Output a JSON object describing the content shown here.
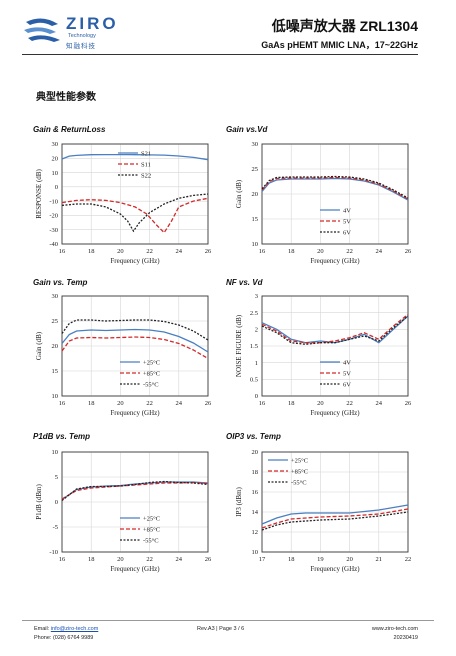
{
  "header": {
    "logo_name": "ZIRO",
    "logo_sub": "Technology",
    "logo_cn": "知融科技",
    "title": "低噪声放大器 ZRL1304",
    "subtitle": "GaAs pHEMT MMIC LNA，17~22GHz"
  },
  "section_title": "典型性能参数",
  "footer": {
    "email_label": "Email:",
    "email": "info@ziro-tech.com",
    "phone_label": "Phone:",
    "phone": "(028) 6764 9989",
    "rev": "Rev.A3 | Page 3 / 6",
    "website": "www.ziro-tech.com",
    "date": "20230419"
  },
  "chart_data": [
    {
      "type": "line",
      "title": "Gain & ReturnLoss",
      "xlabel": "Frequency (GHz)",
      "ylabel": "RESPONSE (dB)",
      "xlim": [
        16,
        26
      ],
      "ylim": [
        -40,
        30
      ],
      "xticks": [
        16,
        18,
        20,
        22,
        24,
        26
      ],
      "yticks": [
        -40,
        -30,
        -20,
        -10,
        0,
        10,
        20,
        30
      ],
      "grid": true,
      "legend": "upper-center",
      "series": [
        {
          "name": "S21",
          "color": "#4a7fc1",
          "dash": "",
          "x": [
            16,
            16.5,
            17,
            18,
            19,
            20,
            21,
            22,
            23,
            24,
            25,
            26
          ],
          "y": [
            19.5,
            21.5,
            22,
            22.5,
            22.6,
            22.6,
            22.5,
            22.4,
            22.2,
            21.6,
            20.6,
            19
          ]
        },
        {
          "name": "S11",
          "color": "#d12a2a",
          "dash": "4,2",
          "x": [
            16,
            17,
            18,
            19,
            20,
            21,
            21.8,
            22.5,
            23,
            23.5,
            24,
            25,
            26
          ],
          "y": [
            -11,
            -9.5,
            -9,
            -9.5,
            -11,
            -14,
            -19,
            -27,
            -32,
            -24,
            -14,
            -10,
            -8
          ]
        },
        {
          "name": "S22",
          "color": "#222222",
          "dash": "2,1.5",
          "x": [
            16,
            17,
            18,
            19,
            20,
            20.5,
            20.9,
            21.3,
            22,
            23,
            24,
            25,
            26
          ],
          "y": [
            -13,
            -12,
            -12,
            -14,
            -19,
            -24,
            -31,
            -25,
            -18,
            -12,
            -8,
            -6,
            -5
          ]
        }
      ]
    },
    {
      "type": "line",
      "title": "Gain vs.Vd",
      "xlabel": "Frequency (GHz)",
      "ylabel": "Gain (dB)",
      "xlim": [
        16,
        26
      ],
      "ylim": [
        10,
        30
      ],
      "xticks": [
        16,
        18,
        20,
        22,
        24,
        26
      ],
      "yticks": [
        10,
        15,
        20,
        25,
        30
      ],
      "grid": true,
      "legend": "lower-center",
      "series": [
        {
          "name": "4V",
          "color": "#4a7fc1",
          "dash": "",
          "x": [
            16,
            16.5,
            17,
            18,
            19,
            20,
            21,
            22,
            23,
            24,
            25,
            26
          ],
          "y": [
            20.5,
            22.2,
            22.8,
            23,
            23,
            23,
            23.1,
            23,
            22.6,
            21.8,
            20.4,
            18.8
          ]
        },
        {
          "name": "5V",
          "color": "#d12a2a",
          "dash": "4,2",
          "x": [
            16,
            16.5,
            17,
            18,
            19,
            20,
            21,
            22,
            23,
            24,
            25,
            26
          ],
          "y": [
            20.8,
            22.5,
            23.1,
            23.2,
            23.2,
            23.2,
            23.3,
            23.2,
            22.8,
            22,
            20.6,
            19
          ]
        },
        {
          "name": "6V",
          "color": "#222222",
          "dash": "2,1.5",
          "x": [
            16,
            16.5,
            17,
            18,
            19,
            20,
            21,
            22,
            23,
            24,
            25,
            26
          ],
          "y": [
            21,
            22.7,
            23.3,
            23.4,
            23.4,
            23.4,
            23.5,
            23.4,
            23,
            22.2,
            20.8,
            19.2
          ]
        }
      ]
    },
    {
      "type": "line",
      "title": "Gain vs. Temp",
      "xlabel": "Frequency (GHz)",
      "ylabel": "Gain (dB)",
      "xlim": [
        16,
        26
      ],
      "ylim": [
        10,
        30
      ],
      "xticks": [
        16,
        18,
        20,
        22,
        24,
        26
      ],
      "yticks": [
        10,
        15,
        20,
        25,
        30
      ],
      "grid": true,
      "legend": "lower-center",
      "series": [
        {
          "name": "+25°C",
          "color": "#4a7fc1",
          "dash": "",
          "x": [
            16,
            16.5,
            17,
            18,
            19,
            20,
            21,
            22,
            23,
            24,
            25,
            26
          ],
          "y": [
            20.5,
            22.3,
            23,
            23.2,
            23.1,
            23.2,
            23.3,
            23.2,
            22.8,
            21.9,
            20.6,
            18.8
          ]
        },
        {
          "name": "+85°C",
          "color": "#d12a2a",
          "dash": "4,2",
          "x": [
            16,
            16.5,
            17,
            18,
            19,
            20,
            21,
            22,
            23,
            24,
            25,
            26
          ],
          "y": [
            19,
            21,
            21.6,
            21.7,
            21.6,
            21.7,
            21.8,
            21.7,
            21.3,
            20.5,
            19.2,
            17.5
          ]
        },
        {
          "name": "-55°C",
          "color": "#222222",
          "dash": "2,1.5",
          "x": [
            16,
            16.5,
            17,
            18,
            19,
            20,
            21,
            22,
            23,
            24,
            25,
            26
          ],
          "y": [
            22.5,
            24.5,
            25.2,
            25.2,
            25,
            25.1,
            25.2,
            25.2,
            24.9,
            24.2,
            23,
            21.2
          ]
        }
      ]
    },
    {
      "type": "line",
      "title": "NF vs. Vd",
      "xlabel": "Frequency (GHz)",
      "ylabel": "NOISE FIGURE (dB)",
      "xlim": [
        16,
        26
      ],
      "ylim": [
        0,
        3
      ],
      "xticks": [
        16,
        18,
        20,
        22,
        24,
        26
      ],
      "yticks": [
        0,
        0.5,
        1,
        1.5,
        2,
        2.5,
        3
      ],
      "grid": true,
      "legend": "lower-center",
      "series": [
        {
          "name": "4V",
          "color": "#4a7fc1",
          "dash": "",
          "x": [
            16,
            17,
            18,
            19,
            20,
            21,
            22,
            23,
            24,
            25,
            26
          ],
          "y": [
            2.2,
            2.0,
            1.7,
            1.6,
            1.65,
            1.6,
            1.7,
            1.85,
            1.6,
            2.0,
            2.4
          ]
        },
        {
          "name": "5V",
          "color": "#d12a2a",
          "dash": "4,2",
          "x": [
            16,
            17,
            18,
            19,
            20,
            21,
            22,
            23,
            24,
            25,
            26
          ],
          "y": [
            2.15,
            1.95,
            1.65,
            1.6,
            1.6,
            1.65,
            1.75,
            1.9,
            1.7,
            2.1,
            2.45
          ]
        },
        {
          "name": "6V",
          "color": "#222222",
          "dash": "2,1.5",
          "x": [
            16,
            17,
            18,
            19,
            20,
            21,
            22,
            23,
            24,
            25,
            26
          ],
          "y": [
            2.1,
            1.9,
            1.6,
            1.55,
            1.6,
            1.6,
            1.7,
            1.8,
            1.65,
            2.05,
            2.4
          ]
        }
      ]
    },
    {
      "type": "line",
      "title": "P1dB vs. Temp",
      "xlabel": "Frequency (GHz)",
      "ylabel": "P1dB (dBm)",
      "xlim": [
        16,
        26
      ],
      "ylim": [
        -10,
        10
      ],
      "xticks": [
        16,
        18,
        20,
        22,
        24,
        26
      ],
      "yticks": [
        -10,
        -5,
        0,
        5,
        10
      ],
      "grid": true,
      "legend": "lower-center",
      "series": [
        {
          "name": "+25°C",
          "color": "#4a7fc1",
          "dash": "",
          "x": [
            16,
            17,
            18,
            19,
            20,
            21,
            22,
            23,
            24,
            25,
            26
          ],
          "y": [
            0.5,
            2.5,
            3,
            3.2,
            3.3,
            3.6,
            3.8,
            4,
            4,
            4,
            3.8
          ]
        },
        {
          "name": "+85°C",
          "color": "#d12a2a",
          "dash": "4,2",
          "x": [
            16,
            17,
            18,
            19,
            20,
            21,
            22,
            23,
            24,
            25,
            26
          ],
          "y": [
            0.6,
            2.3,
            2.8,
            3,
            3.2,
            3.4,
            3.6,
            3.8,
            3.8,
            3.9,
            3.7
          ]
        },
        {
          "name": "-55°C",
          "color": "#222222",
          "dash": "2,1.5",
          "x": [
            16,
            17,
            18,
            19,
            20,
            21,
            22,
            23,
            24,
            25,
            26
          ],
          "y": [
            0.3,
            2.6,
            3.1,
            3.1,
            3.2,
            3.5,
            3.9,
            4.1,
            3.9,
            3.8,
            3.5
          ]
        }
      ]
    },
    {
      "type": "line",
      "title": "OIP3 vs. Temp",
      "xlabel": "Frequency (GHz)",
      "ylabel": "IP3 (dBm)",
      "xlim": [
        17,
        22
      ],
      "ylim": [
        10,
        20
      ],
      "xticks": [
        17,
        18,
        19,
        20,
        21,
        22
      ],
      "yticks": [
        10,
        12,
        14,
        16,
        18,
        20
      ],
      "grid": true,
      "legend": "upper-left",
      "series": [
        {
          "name": "+25°C",
          "color": "#4a7fc1",
          "dash": "",
          "x": [
            17,
            17.5,
            18,
            18.5,
            19,
            20,
            21,
            22
          ],
          "y": [
            12.8,
            13.4,
            13.8,
            13.9,
            13.9,
            13.9,
            14.2,
            14.7
          ]
        },
        {
          "name": "+85°C",
          "color": "#d12a2a",
          "dash": "4,2",
          "x": [
            17,
            17.5,
            18,
            18.5,
            19,
            20,
            21,
            22
          ],
          "y": [
            12.4,
            12.9,
            13.3,
            13.4,
            13.5,
            13.6,
            13.8,
            14.3
          ]
        },
        {
          "name": "-55°C",
          "color": "#222222",
          "dash": "2,1.5",
          "x": [
            17,
            17.5,
            18,
            18.5,
            19,
            20,
            21,
            22
          ],
          "y": [
            12.2,
            12.7,
            13,
            13.1,
            13.2,
            13.3,
            13.6,
            14
          ]
        }
      ]
    }
  ]
}
